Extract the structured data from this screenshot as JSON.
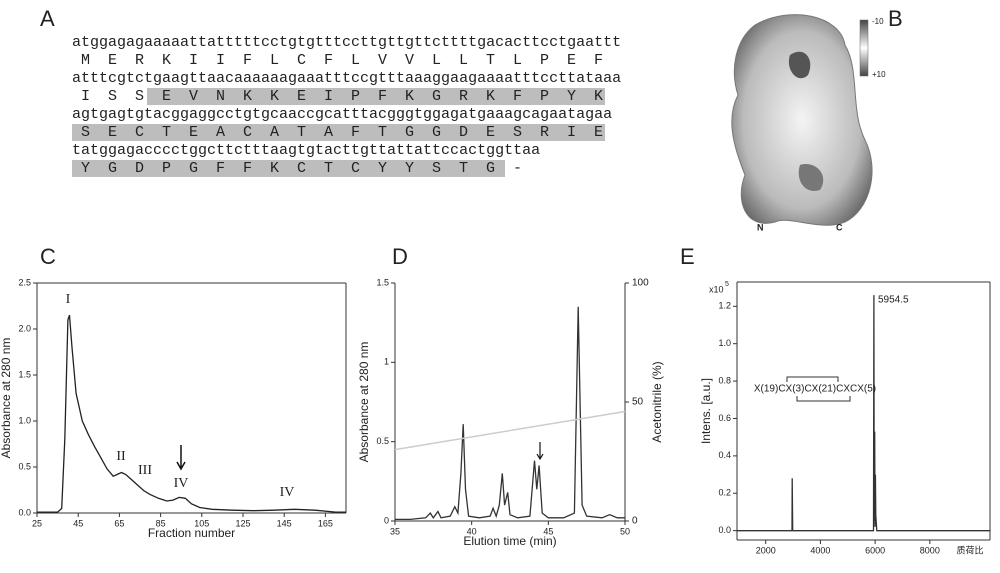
{
  "panels": {
    "A": {
      "label": "A",
      "rows": [
        {
          "nt": "atggagagaaaaattatttttcctgtgtttccttgttgttcttttgacacttcctgaattt",
          "aa": [
            "M",
            "E",
            "R",
            "K",
            "I",
            "I",
            "F",
            "L",
            "C",
            "F",
            "L",
            "V",
            "V",
            "L",
            "L",
            "T",
            "L",
            "P",
            "E",
            "F"
          ]
        },
        {
          "nt": "atttcgtctgaagttaacaaaaaagaaatttccgtttaaaggaagaaaatttccttataaa",
          "aa": [
            "I",
            "S",
            "S",
            "E",
            "V",
            "N",
            "K",
            "K",
            "E",
            "I",
            "P",
            "F",
            "K",
            "G",
            "R",
            "K",
            "F",
            "P",
            "Y",
            "K"
          ]
        },
        {
          "nt": "agtgagtgtacggaggcctgtgcaaccgcatttacgggtggagatgaaagcagaatagaa",
          "aa": [
            "S",
            "E",
            "C",
            "T",
            "E",
            "A",
            "C",
            "A",
            "T",
            "A",
            "F",
            "T",
            "G",
            "G",
            "D",
            "E",
            "S",
            "R",
            "I",
            "E"
          ]
        },
        {
          "nt": "tatggagacccctggcttctttaagtgtacttgttattattccactggttaa",
          "aa": [
            "Y",
            "G",
            "D",
            "P",
            "G",
            "F",
            "F",
            "K",
            "C",
            "T",
            "C",
            "Y",
            "Y",
            "S",
            "T",
            "G",
            "-"
          ]
        }
      ]
    },
    "B": {
      "label": "B",
      "scale_top": "-10",
      "scale_bottom": "+10",
      "n_term": "N",
      "c_term": "C"
    }
  },
  "chart_data": [
    {
      "type": "line",
      "panel": "C",
      "xlabel": "Fraction number",
      "ylabel": "Absorbance at 280 nm",
      "x": [
        25,
        35,
        37,
        38.5,
        40,
        40.8,
        42,
        44,
        47,
        50,
        53,
        56,
        59,
        62,
        64,
        66,
        68,
        71,
        74,
        77,
        80,
        84,
        88,
        91,
        94,
        97,
        100,
        104,
        110,
        120,
        130,
        140,
        150,
        160,
        170,
        175
      ],
      "series": [
        {
          "color": "#222222",
          "values": [
            0.01,
            0.01,
            0.05,
            0.8,
            2.1,
            2.15,
            1.8,
            1.3,
            1.0,
            0.85,
            0.72,
            0.6,
            0.48,
            0.4,
            0.42,
            0.44,
            0.42,
            0.36,
            0.3,
            0.24,
            0.2,
            0.16,
            0.13,
            0.14,
            0.17,
            0.16,
            0.1,
            0.06,
            0.04,
            0.03,
            0.025,
            0.03,
            0.04,
            0.03,
            0.01,
            0.01
          ]
        }
      ],
      "xlim": [
        25,
        175
      ],
      "xticks": [
        25,
        45,
        65,
        85,
        105,
        125,
        145,
        165
      ],
      "ylim": [
        0,
        2.5
      ],
      "yticks": [
        {
          "value": 0,
          "label": "0.0"
        },
        0.5,
        {
          "value": 1,
          "label": "1.0"
        },
        1.5,
        {
          "value": 2,
          "label": "2.0"
        },
        2.5
      ],
      "annotations": [
        "I",
        "II",
        "III",
        "IV",
        "IV"
      ]
    },
    {
      "type": "line",
      "panel": "D",
      "xlabel": "Elution time (min)",
      "ylabel": "Absorbance at 280 nm",
      "y2label": "Acetonitrile (%)",
      "x": [
        35,
        36,
        37,
        37.3,
        37.5,
        37.8,
        38,
        38.6,
        38.9,
        39.1,
        39.3,
        39.45,
        39.6,
        39.8,
        40.5,
        41.2,
        41.4,
        41.6,
        41.8,
        42,
        42.15,
        42.35,
        42.5,
        43,
        43.8,
        44.1,
        44.25,
        44.4,
        44.6,
        45,
        46,
        46.7,
        46.95,
        47.2,
        47.5,
        48.5,
        49,
        49.5,
        50
      ],
      "series": [
        {
          "color": "#333333",
          "values": [
            0.01,
            0.01,
            0.02,
            0.05,
            0.02,
            0.06,
            0.02,
            0.03,
            0.09,
            0.05,
            0.3,
            0.61,
            0.2,
            0.03,
            0.02,
            0.03,
            0.08,
            0.03,
            0.1,
            0.3,
            0.1,
            0.18,
            0.04,
            0.02,
            0.03,
            0.38,
            0.2,
            0.35,
            0.05,
            0.02,
            0.02,
            0.05,
            1.35,
            0.1,
            0.03,
            0.02,
            0.04,
            0.02,
            0.02
          ]
        },
        {
          "color": "#cccccc",
          "axis": "y2",
          "x": [
            35,
            50
          ],
          "values": [
            30,
            46
          ]
        }
      ],
      "xlim": [
        35,
        50
      ],
      "xticks": [
        35,
        40,
        45,
        50
      ],
      "ylim": [
        0,
        1.5
      ],
      "yticks": [
        0,
        0.5,
        1,
        1.5
      ],
      "y2lim": [
        0,
        100
      ],
      "y2ticks": [
        0,
        50,
        100
      ]
    },
    {
      "type": "line",
      "panel": "E",
      "ylabel": "Intens. [a.u.]",
      "xlabel": "质荷比",
      "exponent_base": "x10",
      "exponent": "5",
      "x": [
        950,
        2960,
        2970,
        2985,
        5940,
        5954.5,
        5965,
        5985,
        5995,
        6010,
        6025,
        6060,
        10200
      ],
      "series": [
        {
          "color": "#333333",
          "values": [
            0,
            0,
            0.28,
            0,
            0,
            1.26,
            0.05,
            0.53,
            0.02,
            0.3,
            0.08,
            0,
            0
          ]
        }
      ],
      "xlim": [
        950,
        10200
      ],
      "xticks": [
        2000,
        4000,
        6000,
        8000
      ],
      "ylim": [
        -0.05,
        1.33
      ],
      "yticks": [
        {
          "value": 0,
          "label": "0.0"
        },
        0.2,
        0.4,
        0.6,
        0.8,
        {
          "value": 1,
          "label": "1.0"
        },
        1.2
      ],
      "annotations": [
        "5954.5",
        "X(19)CX(3)CX(21)CXCX(5)"
      ]
    }
  ]
}
